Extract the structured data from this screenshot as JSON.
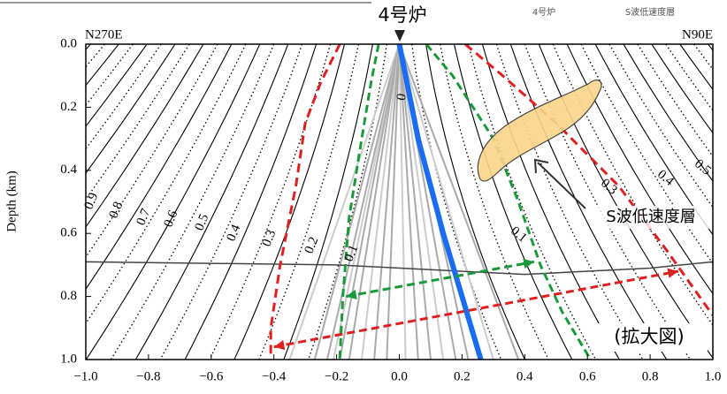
{
  "chart_data": {
    "type": "contour",
    "title": "4号炉",
    "legend_labels": [
      "4号炉",
      "S波低速度層"
    ],
    "left_label": "N270E",
    "right_label": "N90E",
    "ylabel": "Depth (km)",
    "xlim": [
      -1.0,
      1.0
    ],
    "ylim": [
      0.0,
      1.0
    ],
    "xticks": [
      {
        "value": -1.0,
        "label": "−1.0"
      },
      {
        "value": -0.8,
        "label": "−0.8"
      },
      {
        "value": -0.6,
        "label": "−0.6"
      },
      {
        "value": -0.4,
        "label": "−0.4"
      },
      {
        "value": -0.2,
        "label": "−0.2"
      },
      {
        "value": 0,
        "label": "0.0"
      },
      0.2,
      0.4,
      0.6,
      0.8,
      {
        "value": 1.0,
        "label": "1.0"
      }
    ],
    "yticks": [
      {
        "value": 0,
        "label": "0.0"
      },
      0.2,
      0.4,
      0.6,
      0.8,
      {
        "value": 1.0,
        "label": "1.0"
      }
    ],
    "contour_labels_left": [
      0.9,
      0.8,
      0.7,
      0.6,
      0.5,
      0.4,
      0.3,
      0.2,
      0.1
    ],
    "contour_label_center": 0,
    "contour_labels_right": [
      0.1,
      0.3,
      0.4,
      0.5
    ],
    "annotations": [
      "S波低速度層",
      "(拡大図)"
    ]
  }
}
